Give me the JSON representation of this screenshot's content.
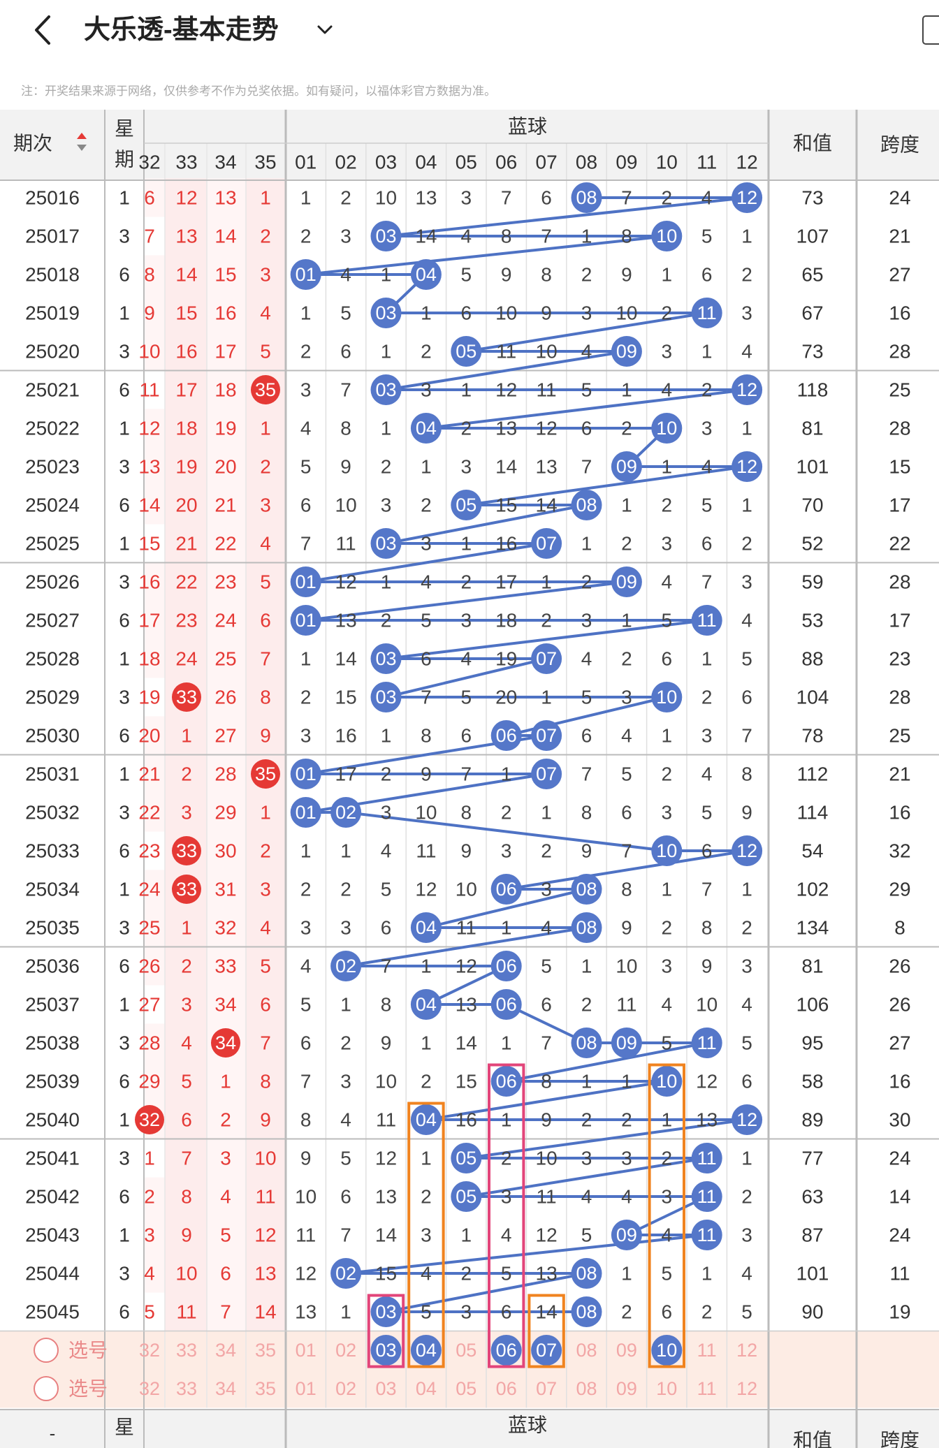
{
  "header": {
    "title": "大乐透-基本走势",
    "note": "注：开奖结果来源于网络，仅供参考不作为兑奖依据。如有疑问，以福体彩官方数据为准。"
  },
  "table": {
    "col_issue": "期次",
    "col_week": "星期",
    "col_blue": "蓝球",
    "col_sum": "和值",
    "col_span": "跨度",
    "front_cols": [
      "32",
      "33",
      "34",
      "35"
    ],
    "blue_cols": [
      "01",
      "02",
      "03",
      "04",
      "05",
      "06",
      "07",
      "08",
      "09",
      "10",
      "11",
      "12"
    ]
  },
  "rows": [
    {
      "issue": "25016",
      "week": "1",
      "front": [
        "6",
        "12",
        "13",
        "1"
      ],
      "fh": -1,
      "blue": [
        "1",
        "2",
        "10",
        "13",
        "3",
        "7",
        "6",
        "08",
        "7",
        "2",
        "4",
        "12"
      ],
      "sum": "73",
      "span": "24"
    },
    {
      "issue": "25017",
      "week": "3",
      "front": [
        "7",
        "13",
        "14",
        "2"
      ],
      "fh": -1,
      "blue": [
        "2",
        "3",
        "03",
        "14",
        "4",
        "8",
        "7",
        "1",
        "8",
        "10",
        "5",
        "1"
      ],
      "sum": "107",
      "span": "21"
    },
    {
      "issue": "25018",
      "week": "6",
      "front": [
        "8",
        "14",
        "15",
        "3"
      ],
      "fh": -1,
      "blue": [
        "01",
        "4",
        "1",
        "04",
        "5",
        "9",
        "8",
        "2",
        "9",
        "1",
        "6",
        "2"
      ],
      "sum": "65",
      "span": "27"
    },
    {
      "issue": "25019",
      "week": "1",
      "front": [
        "9",
        "15",
        "16",
        "4"
      ],
      "fh": -1,
      "blue": [
        "1",
        "5",
        "03",
        "1",
        "6",
        "10",
        "9",
        "3",
        "10",
        "2",
        "11",
        "3"
      ],
      "sum": "67",
      "span": "16"
    },
    {
      "issue": "25020",
      "week": "3",
      "front": [
        "10",
        "16",
        "17",
        "5"
      ],
      "fh": -1,
      "blue": [
        "2",
        "6",
        "1",
        "2",
        "05",
        "11",
        "10",
        "4",
        "09",
        "3",
        "1",
        "4"
      ],
      "sum": "73",
      "span": "28"
    },
    {
      "issue": "25021",
      "week": "6",
      "front": [
        "11",
        "17",
        "18",
        "35"
      ],
      "fh": 3,
      "blue": [
        "3",
        "7",
        "03",
        "3",
        "1",
        "12",
        "11",
        "5",
        "1",
        "4",
        "2",
        "12"
      ],
      "sum": "118",
      "span": "25"
    },
    {
      "issue": "25022",
      "week": "1",
      "front": [
        "12",
        "18",
        "19",
        "1"
      ],
      "fh": -1,
      "blue": [
        "4",
        "8",
        "1",
        "04",
        "2",
        "13",
        "12",
        "6",
        "2",
        "10",
        "3",
        "1"
      ],
      "sum": "81",
      "span": "28"
    },
    {
      "issue": "25023",
      "week": "3",
      "front": [
        "13",
        "19",
        "20",
        "2"
      ],
      "fh": -1,
      "blue": [
        "5",
        "9",
        "2",
        "1",
        "3",
        "14",
        "13",
        "7",
        "09",
        "1",
        "4",
        "12"
      ],
      "sum": "101",
      "span": "15"
    },
    {
      "issue": "25024",
      "week": "6",
      "front": [
        "14",
        "20",
        "21",
        "3"
      ],
      "fh": -1,
      "blue": [
        "6",
        "10",
        "3",
        "2",
        "05",
        "15",
        "14",
        "08",
        "1",
        "2",
        "5",
        "1"
      ],
      "sum": "70",
      "span": "17"
    },
    {
      "issue": "25025",
      "week": "1",
      "front": [
        "15",
        "21",
        "22",
        "4"
      ],
      "fh": -1,
      "blue": [
        "7",
        "11",
        "03",
        "3",
        "1",
        "16",
        "07",
        "1",
        "2",
        "3",
        "6",
        "2"
      ],
      "sum": "52",
      "span": "22"
    },
    {
      "issue": "25026",
      "week": "3",
      "front": [
        "16",
        "22",
        "23",
        "5"
      ],
      "fh": -1,
      "blue": [
        "01",
        "12",
        "1",
        "4",
        "2",
        "17",
        "1",
        "2",
        "09",
        "4",
        "7",
        "3"
      ],
      "sum": "59",
      "span": "28"
    },
    {
      "issue": "25027",
      "week": "6",
      "front": [
        "17",
        "23",
        "24",
        "6"
      ],
      "fh": -1,
      "blue": [
        "01",
        "13",
        "2",
        "5",
        "3",
        "18",
        "2",
        "3",
        "1",
        "5",
        "11",
        "4"
      ],
      "sum": "53",
      "span": "17"
    },
    {
      "issue": "25028",
      "week": "1",
      "front": [
        "18",
        "24",
        "25",
        "7"
      ],
      "fh": -1,
      "blue": [
        "1",
        "14",
        "03",
        "6",
        "4",
        "19",
        "07",
        "4",
        "2",
        "6",
        "1",
        "5"
      ],
      "sum": "88",
      "span": "23"
    },
    {
      "issue": "25029",
      "week": "3",
      "front": [
        "19",
        "33",
        "26",
        "8"
      ],
      "fh": 1,
      "blue": [
        "2",
        "15",
        "03",
        "7",
        "5",
        "20",
        "1",
        "5",
        "3",
        "10",
        "2",
        "6"
      ],
      "sum": "104",
      "span": "28"
    },
    {
      "issue": "25030",
      "week": "6",
      "front": [
        "20",
        "1",
        "27",
        "9"
      ],
      "fh": -1,
      "blue": [
        "3",
        "16",
        "1",
        "8",
        "6",
        "06",
        "07",
        "6",
        "4",
        "1",
        "3",
        "7"
      ],
      "sum": "78",
      "span": "25"
    },
    {
      "issue": "25031",
      "week": "1",
      "front": [
        "21",
        "2",
        "28",
        "35"
      ],
      "fh": 3,
      "blue": [
        "01",
        "17",
        "2",
        "9",
        "7",
        "1",
        "07",
        "7",
        "5",
        "2",
        "4",
        "8"
      ],
      "sum": "112",
      "span": "21"
    },
    {
      "issue": "25032",
      "week": "3",
      "front": [
        "22",
        "3",
        "29",
        "1"
      ],
      "fh": -1,
      "blue": [
        "01",
        "02",
        "3",
        "10",
        "8",
        "2",
        "1",
        "8",
        "6",
        "3",
        "5",
        "9"
      ],
      "sum": "114",
      "span": "16"
    },
    {
      "issue": "25033",
      "week": "6",
      "front": [
        "23",
        "33",
        "30",
        "2"
      ],
      "fh": 1,
      "blue": [
        "1",
        "1",
        "4",
        "11",
        "9",
        "3",
        "2",
        "9",
        "7",
        "10",
        "6",
        "12"
      ],
      "sum": "54",
      "span": "32"
    },
    {
      "issue": "25034",
      "week": "1",
      "front": [
        "24",
        "33",
        "31",
        "3"
      ],
      "fh": 1,
      "blue": [
        "2",
        "2",
        "5",
        "12",
        "10",
        "06",
        "3",
        "08",
        "8",
        "1",
        "7",
        "1"
      ],
      "sum": "102",
      "span": "29"
    },
    {
      "issue": "25035",
      "week": "3",
      "front": [
        "25",
        "1",
        "32",
        "4"
      ],
      "fh": -1,
      "blue": [
        "3",
        "3",
        "6",
        "04",
        "11",
        "1",
        "4",
        "08",
        "9",
        "2",
        "8",
        "2"
      ],
      "sum": "134",
      "span": "8"
    },
    {
      "issue": "25036",
      "week": "6",
      "front": [
        "26",
        "2",
        "33",
        "5"
      ],
      "fh": -1,
      "blue": [
        "4",
        "02",
        "7",
        "1",
        "12",
        "06",
        "5",
        "1",
        "10",
        "3",
        "9",
        "3"
      ],
      "sum": "81",
      "span": "26"
    },
    {
      "issue": "25037",
      "week": "1",
      "front": [
        "27",
        "3",
        "34",
        "6"
      ],
      "fh": -1,
      "blue": [
        "5",
        "1",
        "8",
        "04",
        "13",
        "06",
        "6",
        "2",
        "11",
        "4",
        "10",
        "4"
      ],
      "sum": "106",
      "span": "26"
    },
    {
      "issue": "25038",
      "week": "3",
      "front": [
        "28",
        "4",
        "34",
        "7"
      ],
      "fh": 2,
      "blue": [
        "6",
        "2",
        "9",
        "1",
        "14",
        "1",
        "7",
        "08",
        "09",
        "5",
        "11",
        "5"
      ],
      "sum": "95",
      "span": "27"
    },
    {
      "issue": "25039",
      "week": "6",
      "front": [
        "29",
        "5",
        "1",
        "8"
      ],
      "fh": -1,
      "blue": [
        "7",
        "3",
        "10",
        "2",
        "15",
        "06",
        "8",
        "1",
        "1",
        "10",
        "12",
        "6"
      ],
      "sum": "58",
      "span": "16"
    },
    {
      "issue": "25040",
      "week": "1",
      "front": [
        "32",
        "6",
        "2",
        "9"
      ],
      "fh": 0,
      "blue": [
        "8",
        "4",
        "11",
        "04",
        "16",
        "1",
        "9",
        "2",
        "2",
        "1",
        "13",
        "12"
      ],
      "sum": "89",
      "span": "30"
    },
    {
      "issue": "25041",
      "week": "3",
      "front": [
        "1",
        "7",
        "3",
        "10"
      ],
      "fh": -1,
      "blue": [
        "9",
        "5",
        "12",
        "1",
        "05",
        "2",
        "10",
        "3",
        "3",
        "2",
        "11",
        "1"
      ],
      "sum": "77",
      "span": "24"
    },
    {
      "issue": "25042",
      "week": "6",
      "front": [
        "2",
        "8",
        "4",
        "11"
      ],
      "fh": -1,
      "blue": [
        "10",
        "6",
        "13",
        "2",
        "05",
        "3",
        "11",
        "4",
        "4",
        "3",
        "11",
        "2"
      ],
      "sum": "63",
      "span": "14"
    },
    {
      "issue": "25043",
      "week": "1",
      "front": [
        "3",
        "9",
        "5",
        "12"
      ],
      "fh": -1,
      "blue": [
        "11",
        "7",
        "14",
        "3",
        "1",
        "4",
        "12",
        "5",
        "09",
        "4",
        "11",
        "3"
      ],
      "sum": "87",
      "span": "24"
    },
    {
      "issue": "25044",
      "week": "3",
      "front": [
        "4",
        "10",
        "6",
        "13"
      ],
      "fh": -1,
      "blue": [
        "12",
        "02",
        "15",
        "4",
        "2",
        "5",
        "13",
        "08",
        "1",
        "5",
        "1",
        "4"
      ],
      "sum": "101",
      "span": "11"
    },
    {
      "issue": "25045",
      "week": "6",
      "front": [
        "5",
        "11",
        "7",
        "14"
      ],
      "fh": -1,
      "blue": [
        "13",
        "1",
        "03",
        "5",
        "3",
        "6",
        "14",
        "08",
        "2",
        "6",
        "2",
        "5"
      ],
      "sum": "90",
      "span": "19"
    }
  ],
  "pick": {
    "label": "选号",
    "front": [
      "32",
      "33",
      "34",
      "35"
    ],
    "blue": [
      "01",
      "02",
      "03",
      "04",
      "05",
      "06",
      "07",
      "08",
      "09",
      "10",
      "11",
      "12"
    ],
    "selected": [
      "03",
      "04",
      "06",
      "07",
      "10"
    ]
  },
  "colors": {
    "blue_ball": "#5577c9",
    "red_ball": "#e53935",
    "red_text": "#e53935",
    "pink": "#e2457a",
    "orange": "#f0831f"
  }
}
